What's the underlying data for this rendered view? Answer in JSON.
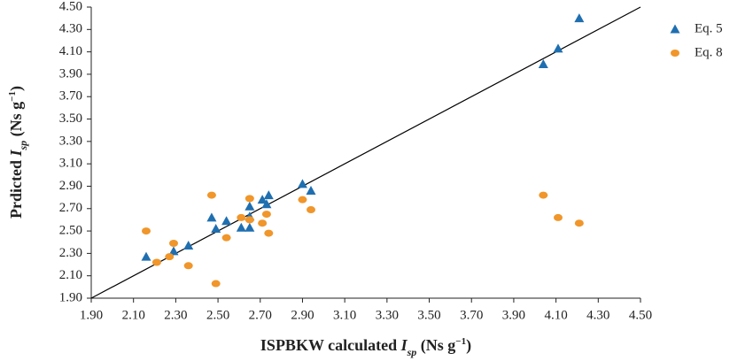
{
  "chart_data": {
    "type": "scatter",
    "xlabel_parts": [
      {
        "text": "ISPBKW calculated "
      },
      {
        "text": "I",
        "style": "italic"
      },
      {
        "text": "sp",
        "style": "sub"
      },
      {
        "text": " (Ns g"
      },
      {
        "text": "−1",
        "style": "sup"
      },
      {
        "text": ")"
      }
    ],
    "ylabel_parts": [
      {
        "text": "Prdicted "
      },
      {
        "text": "I",
        "style": "italic"
      },
      {
        "text": "sp",
        "style": "sub"
      },
      {
        "text": " (Ns g"
      },
      {
        "text": "−1",
        "style": "sup"
      },
      {
        "text": ")"
      }
    ],
    "xlim": [
      1.9,
      4.5
    ],
    "ylim": [
      1.9,
      4.5
    ],
    "xticks": [
      {
        "value": 1.9,
        "label": "1.90"
      },
      {
        "value": 2.1,
        "label": "2.10"
      },
      {
        "value": 2.3,
        "label": "2.30"
      },
      {
        "value": 2.5,
        "label": "2.50"
      },
      {
        "value": 2.7,
        "label": "2.70"
      },
      {
        "value": 2.9,
        "label": "2.90"
      },
      {
        "value": 3.1,
        "label": "3.10"
      },
      {
        "value": 3.3,
        "label": "3.30"
      },
      {
        "value": 3.5,
        "label": "3.50"
      },
      {
        "value": 3.7,
        "label": "3.70"
      },
      {
        "value": 3.9,
        "label": "3.90"
      },
      {
        "value": 4.1,
        "label": "4.10"
      },
      {
        "value": 4.3,
        "label": "4.30"
      },
      {
        "value": 4.5,
        "label": "4.50"
      }
    ],
    "yticks": [
      {
        "value": 1.9,
        "label": "1.90"
      },
      {
        "value": 2.1,
        "label": "2.10"
      },
      {
        "value": 2.3,
        "label": "2.30"
      },
      {
        "value": 2.5,
        "label": "2.50"
      },
      {
        "value": 2.7,
        "label": "2.70"
      },
      {
        "value": 2.9,
        "label": "2.90"
      },
      {
        "value": 3.1,
        "label": "3.10"
      },
      {
        "value": 3.3,
        "label": "3.30"
      },
      {
        "value": 3.5,
        "label": "3.50"
      },
      {
        "value": 3.7,
        "label": "3.70"
      },
      {
        "value": 3.9,
        "label": "3.90"
      },
      {
        "value": 4.1,
        "label": "4.10"
      },
      {
        "value": 4.3,
        "label": "4.30"
      },
      {
        "value": 4.5,
        "label": "4.50"
      }
    ],
    "grid": false,
    "identity_line": true,
    "legend": "right",
    "series": [
      {
        "name": "Eq. 5",
        "color": "#1f6fb0",
        "marker": "triangle",
        "x": [
          2.16,
          2.29,
          2.36,
          2.47,
          2.49,
          2.54,
          2.61,
          2.65,
          2.65,
          2.65,
          2.71,
          2.73,
          2.74,
          2.9,
          2.94,
          4.04,
          4.11,
          4.21
        ],
        "values": [
          2.27,
          2.32,
          2.37,
          2.62,
          2.52,
          2.59,
          2.53,
          2.53,
          2.72,
          2.63,
          2.78,
          2.74,
          2.82,
          2.92,
          2.86,
          3.99,
          4.13,
          4.4
        ]
      },
      {
        "name": "Eq. 8",
        "color": "#f0962a",
        "marker": "ellipse",
        "x": [
          2.16,
          2.21,
          2.27,
          2.29,
          2.36,
          2.47,
          2.49,
          2.54,
          2.61,
          2.65,
          2.65,
          2.71,
          2.73,
          2.74,
          2.9,
          2.94,
          4.04,
          4.11,
          4.21
        ],
        "values": [
          2.5,
          2.22,
          2.27,
          2.39,
          2.19,
          2.82,
          2.03,
          2.44,
          2.62,
          2.79,
          2.6,
          2.57,
          2.65,
          2.48,
          2.78,
          2.69,
          2.82,
          2.62,
          2.57
        ]
      }
    ]
  }
}
